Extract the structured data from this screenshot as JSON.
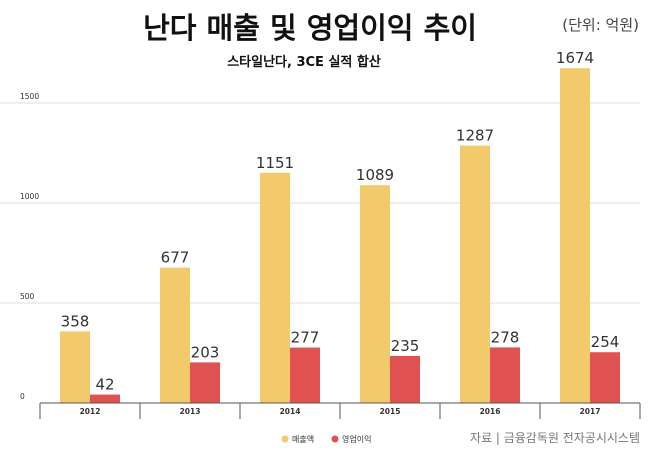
{
  "chart_data": {
    "type": "bar",
    "title": "난다 매출 및 영업이익 추이",
    "unit": "(단위: 억원)",
    "subtitle": "스타일난다, 3CE 실적 합산",
    "categories": [
      "2012",
      "2013",
      "2014",
      "2015",
      "2016",
      "2017"
    ],
    "series": [
      {
        "name": "매출액",
        "color": "#f2c96b",
        "values": [
          358,
          677,
          1151,
          1089,
          1287,
          1674
        ]
      },
      {
        "name": "영업이익",
        "color": "#e05252",
        "values": [
          42,
          203,
          277,
          235,
          278,
          254
        ]
      }
    ],
    "yticks": [
      0,
      500,
      1000,
      1500
    ],
    "ylim": [
      0,
      1750
    ],
    "grid": true,
    "legend_position": "bottom",
    "source": "자료 | 금융감독원 전자공시시스템"
  }
}
